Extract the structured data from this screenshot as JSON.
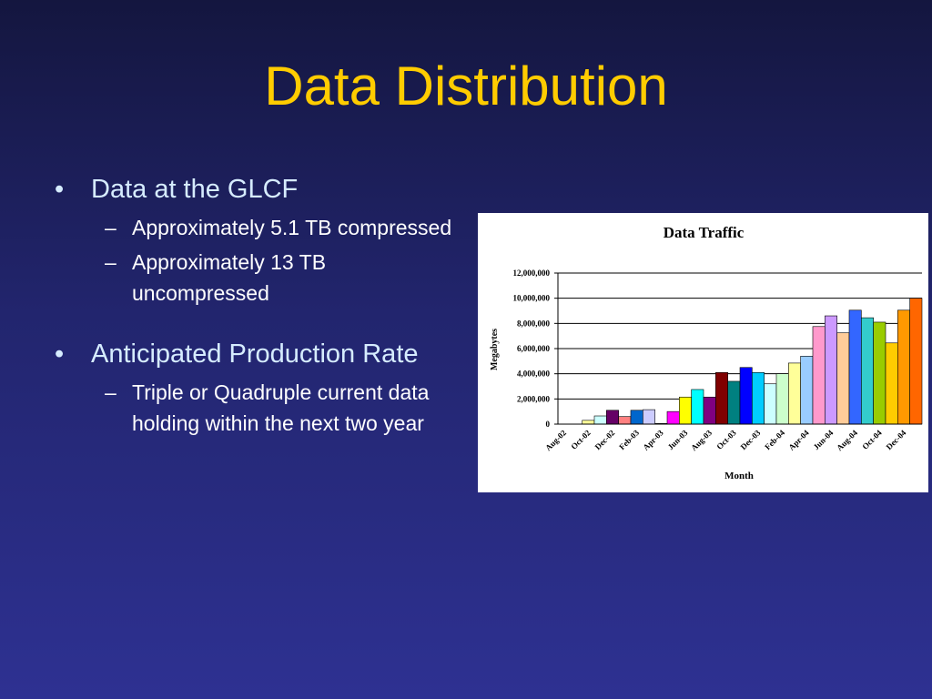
{
  "slide": {
    "title": "Data Distribution",
    "bullets": [
      {
        "text": "Data at the GLCF",
        "sub": [
          "Approximately 5.1 TB compressed",
          "Approximately 13 TB uncompressed"
        ]
      },
      {
        "text": "Anticipated Production Rate",
        "sub": [
          "Triple or Quadruple current data holding within the next two year"
        ]
      }
    ]
  },
  "chart_data": {
    "type": "bar",
    "title": "Data Traffic",
    "x_label": "Month",
    "y_label": "Megabytes",
    "categories": [
      "Aug-02",
      null,
      "Oct-02",
      null,
      "Dec-02",
      null,
      "Feb-03",
      null,
      "Apr-03",
      null,
      "Jun-03",
      null,
      "Aug-03",
      null,
      "Oct-03",
      null,
      "Dec-03",
      null,
      "Feb-04",
      null,
      "Apr-04",
      null,
      "Jun-04",
      null,
      "Aug-04",
      null,
      "Oct-04",
      null,
      "Dec-04",
      null
    ],
    "values": [
      0,
      0,
      300000,
      650000,
      1100000,
      600000,
      1100000,
      1150000,
      50000,
      1000000,
      2150000,
      2750000,
      2150000,
      4100000,
      3400000,
      4500000,
      4100000,
      3200000,
      4000000,
      4850000,
      5400000,
      7750000,
      8600000,
      7250000,
      9050000,
      8450000,
      8100000,
      6450000,
      9050000,
      10000000
    ],
    "colors": [
      "#ffffcc",
      "#ccffff",
      "#ffff99",
      "#ccffff",
      "#660066",
      "#ff8080",
      "#0066cc",
      "#ccccff",
      "#000080",
      "#ff00ff",
      "#ffff00",
      "#00ffff",
      "#800080",
      "#800000",
      "#008080",
      "#0000ff",
      "#00ccff",
      "#ccffff",
      "#ccffcc",
      "#ffff99",
      "#99ccff",
      "#ff99cc",
      "#cc99ff",
      "#ffcc99",
      "#3366ff",
      "#33cccc",
      "#99cc00",
      "#ffcc00",
      "#ff9900",
      "#ff6600"
    ],
    "ylim": [
      0,
      12000000
    ],
    "yticks": [
      0,
      {
        "value": 2000000,
        "label": "2,000,000"
      },
      {
        "value": 4000000,
        "label": "4,000,000"
      },
      {
        "value": 6000000,
        "label": "6,000,000"
      },
      {
        "value": 8000000,
        "label": "8,000,000"
      },
      {
        "value": 10000000,
        "label": "10,000,000"
      },
      {
        "value": 12000000,
        "label": "12,000,000"
      }
    ],
    "grid": true
  }
}
